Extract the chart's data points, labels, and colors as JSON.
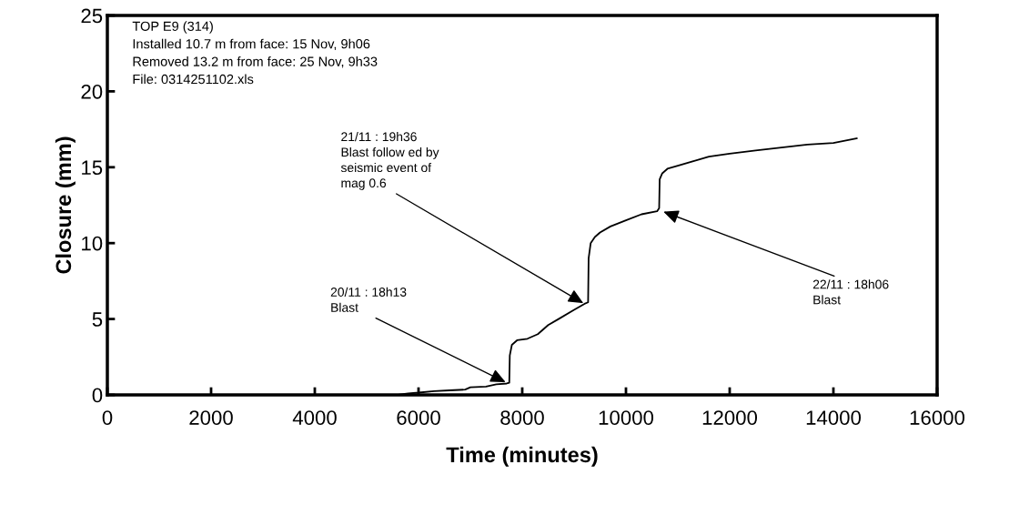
{
  "chart_data": {
    "type": "line",
    "xlabel": "Time (minutes)",
    "ylabel": "Closure (mm)",
    "xlim": [
      0,
      16000
    ],
    "ylim": [
      0,
      25
    ],
    "xticks": [
      0,
      2000,
      4000,
      6000,
      8000,
      10000,
      12000,
      14000,
      16000
    ],
    "yticks": [
      0,
      5,
      10,
      15,
      20,
      25
    ],
    "grid": false,
    "legend": false,
    "marker": "none",
    "line_style": "solid",
    "series": [
      {
        "color": "#000000",
        "x": [
          0,
          2000,
          4000,
          5600,
          5800,
          6000,
          6300,
          6600,
          6900,
          7000,
          7300,
          7500,
          7700,
          7750,
          7760,
          7800,
          7900,
          8100,
          8300,
          8500,
          8700,
          9000,
          9200,
          9270,
          9280,
          9320,
          9400,
          9500,
          9700,
          10000,
          10300,
          10600,
          10640,
          10650,
          10700,
          10800,
          11000,
          11300,
          11600,
          12000,
          12500,
          13000,
          13500,
          14000,
          14450
        ],
        "values": [
          0,
          0,
          0,
          0,
          0.1,
          0.15,
          0.25,
          0.3,
          0.35,
          0.5,
          0.55,
          0.7,
          0.75,
          0.8,
          2.6,
          3.3,
          3.6,
          3.7,
          4.0,
          4.6,
          5.0,
          5.6,
          6.0,
          6.1,
          9.0,
          10.0,
          10.4,
          10.7,
          11.1,
          11.5,
          11.9,
          12.1,
          12.3,
          14.2,
          14.6,
          14.9,
          15.1,
          15.4,
          15.7,
          15.9,
          16.1,
          16.3,
          16.5,
          16.6,
          16.9
        ]
      }
    ],
    "annotations": [
      "TOP E9 (314)\nInstalled 10.7 m from face: 15 Nov, 9h06\nRemoved 13.2 m from face: 25 Nov, 9h33\nFile: 0314251102.xls",
      {
        "text": "20/11 : 18h13\nBlast",
        "x": 7700,
        "y": 0.8
      },
      {
        "text": "21/11 : 19h36\nBlast follow ed by\nseismic event of\nmag 0.6",
        "x": 9200,
        "y": 6.0
      },
      {
        "text": "22/11 : 18h06\nBlast",
        "x": 10700,
        "y": 12.1
      }
    ]
  }
}
